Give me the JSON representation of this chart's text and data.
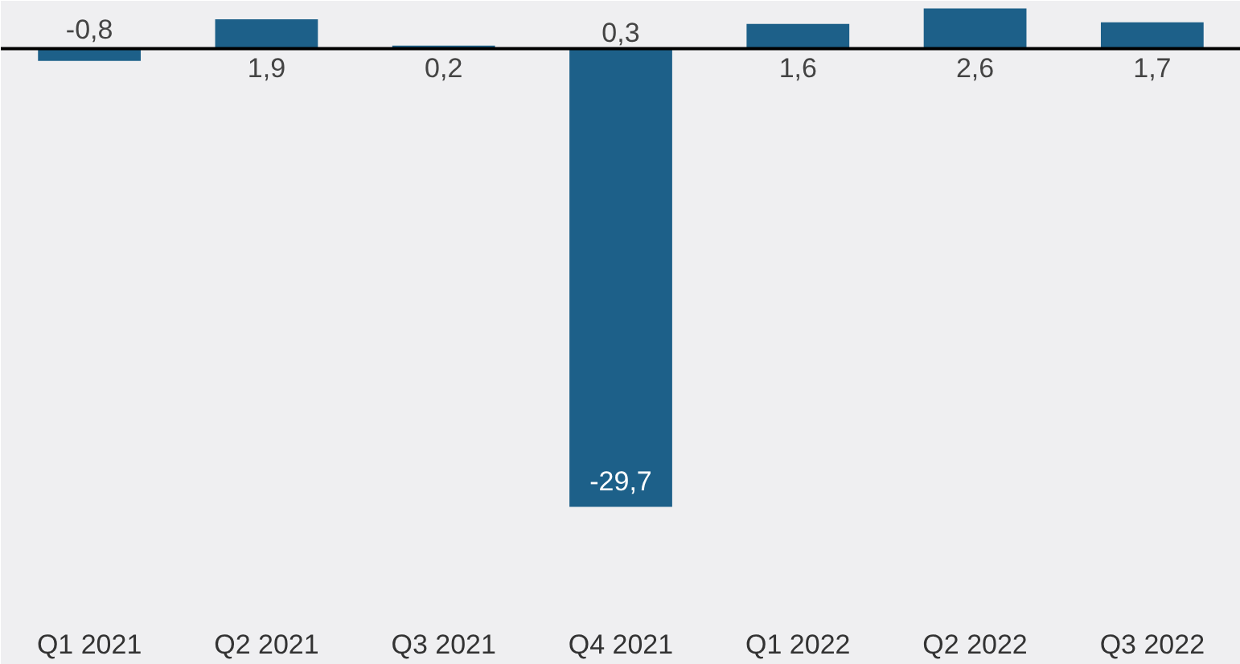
{
  "chart_data": {
    "type": "bar",
    "categories": [
      "Q1 2021",
      "Q2 2021",
      "Q3 2021",
      "Q4 2021",
      "Q1 2022",
      "Q2 2022",
      "Q3 2022"
    ],
    "values": [
      -0.8,
      1.9,
      0.2,
      -29.7,
      1.6,
      2.6,
      1.7
    ],
    "color": "#1d6089",
    "value_labels": [
      "-0,8",
      "1,9",
      "0,2",
      "-29,7",
      "1,6",
      "2,6",
      "1,7"
    ],
    "annotations": [
      {
        "text": "0,3",
        "x": "Q4 2021",
        "y": 0
      }
    ],
    "ylim": [
      -36.5,
      3.1
    ],
    "ref_lines": [
      {
        "axis": "y",
        "value": 0,
        "color": "#000000"
      }
    ],
    "grid": false
  }
}
